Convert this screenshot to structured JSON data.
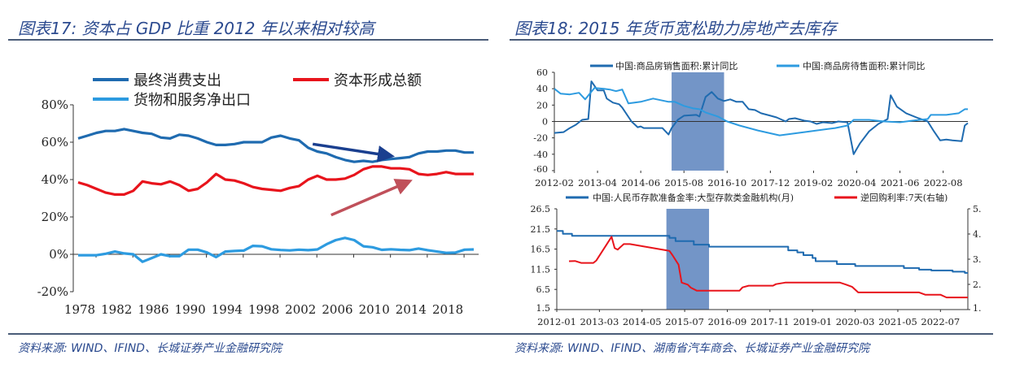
{
  "left_figure": {
    "title": "图表17:  资本占 GDP 比重 2012 年以来相对较高",
    "source": "资料来源:  WIND、IFIND、长城证券产业金融研究院"
  },
  "right_figure": {
    "title": "图表18:  2015 年货币宽松助力房地产去库存",
    "source": "资料来源:  WIND、IFIND、湖南省汽车商会、长城证券产业金融研究院"
  },
  "chart_data": [
    {
      "type": "line",
      "title": "",
      "xlabel": "",
      "ylabel": "",
      "x_start": 1978,
      "xlim": [
        1977.5,
        2021.5
      ],
      "ylim": [
        -20,
        80
      ],
      "yticks": [
        "-20%",
        "0%",
        "20%",
        "40%",
        "60%",
        "80%"
      ],
      "xticks": [
        "1978",
        "1982",
        "1986",
        "1990",
        "1994",
        "1998",
        "2002",
        "2006",
        "2010",
        "2014",
        "2018"
      ],
      "legend": "top",
      "grid": false,
      "series": [
        {
          "name": "最终消费支出",
          "color": "#1f6bb0",
          "values": [
            62,
            63.5,
            65,
            66,
            66,
            67,
            66,
            65,
            64.5,
            62.5,
            62,
            64,
            63.5,
            62,
            60,
            58.5,
            58.5,
            59,
            60,
            60,
            60,
            62.5,
            63.5,
            62,
            61,
            57,
            55,
            54,
            52,
            50.5,
            49.5,
            50,
            49.5,
            50.5,
            51,
            51.5,
            52,
            54,
            55,
            55,
            55.5,
            55.5,
            54.5,
            54.5
          ]
        },
        {
          "name": "资本形成总额",
          "color": "#e8141c",
          "values": [
            38.5,
            37,
            35,
            33,
            32,
            32,
            34,
            39,
            38,
            37.5,
            39,
            37,
            34,
            35,
            38.5,
            43,
            40,
            39.5,
            38,
            36,
            35,
            34.5,
            34,
            35.5,
            36.5,
            40,
            42,
            40,
            40,
            40.5,
            42.5,
            45.5,
            47,
            47,
            46,
            46,
            45.5,
            43,
            42.5,
            43,
            44,
            43,
            43,
            43
          ]
        },
        {
          "name": "货物和服务净出口",
          "color": "#2d9be0",
          "values": [
            -0.5,
            -0.5,
            -0.5,
            0.3,
            1.5,
            0.5,
            0,
            -4,
            -2,
            0,
            -1,
            -1,
            2.5,
            2.5,
            1,
            -1.5,
            1.5,
            1.8,
            2,
            4.5,
            4.3,
            2.7,
            2.3,
            2.1,
            2.5,
            2.2,
            2.6,
            5.4,
            7.6,
            8.8,
            7.6,
            4.3,
            3.8,
            2.4,
            2.7,
            2.4,
            2.2,
            3.1,
            2.2,
            1.5,
            0.8,
            0.9,
            2.5,
            2.6
          ]
        }
      ],
      "annotations": [
        {
          "type": "arrow",
          "color": "#1a3f8f",
          "direction": "down",
          "from": [
            2003.5,
            59
          ],
          "to": [
            2011.5,
            53
          ]
        },
        {
          "type": "arrow",
          "color": "#c0505a",
          "direction": "up",
          "from": [
            2005.5,
            21
          ],
          "to": [
            2013.5,
            38
          ]
        }
      ]
    },
    {
      "type": "line",
      "title": "",
      "xlabel": "",
      "ylabel": "",
      "xlim": [
        "2012-02",
        "2023-04"
      ],
      "ylim": [
        -60,
        60
      ],
      "yticks": [
        "-60",
        "-40",
        "-20",
        "0",
        "20",
        "40",
        "60"
      ],
      "xticks": [
        "2012-02",
        "2013-04",
        "2014-06",
        "2015-08",
        "2016-10",
        "2017-12",
        "2019-02",
        "2020-04",
        "2021-06",
        "2022-08"
      ],
      "shaded_period": [
        "2015-04",
        "2016-09"
      ],
      "shade_color": "#5a82bd",
      "legend": "top",
      "series": [
        {
          "name": "中国:商品房销售面积:累计同比",
          "color": "#1f6bb0",
          "points": [
            [
              "2012-02",
              -14
            ],
            [
              "2012-05",
              -13
            ],
            [
              "2012-07",
              -8
            ],
            [
              "2012-09",
              -4
            ],
            [
              "2012-11",
              2
            ],
            [
              "2013-01",
              3
            ],
            [
              "2013-02",
              49
            ],
            [
              "2013-04",
              38
            ],
            [
              "2013-06",
              38
            ],
            [
              "2013-07",
              28
            ],
            [
              "2013-09",
              23
            ],
            [
              "2013-11",
              21
            ],
            [
              "2013-12",
              17
            ],
            [
              "2014-03",
              0
            ],
            [
              "2014-05",
              -7
            ],
            [
              "2014-06",
              -6
            ],
            [
              "2014-07",
              -8
            ],
            [
              "2014-10",
              -8
            ],
            [
              "2015-01",
              -8
            ],
            [
              "2015-03",
              -16
            ],
            [
              "2015-04",
              -8
            ],
            [
              "2015-06",
              2
            ],
            [
              "2015-08",
              7
            ],
            [
              "2015-12",
              8
            ],
            [
              "2016-01",
              6
            ],
            [
              "2016-03",
              30
            ],
            [
              "2016-05",
              36
            ],
            [
              "2016-07",
              28
            ],
            [
              "2016-09",
              25
            ],
            [
              "2016-11",
              27
            ],
            [
              "2017-01",
              24
            ],
            [
              "2017-03",
              24
            ],
            [
              "2017-05",
              15
            ],
            [
              "2017-07",
              14
            ],
            [
              "2017-09",
              10
            ],
            [
              "2017-12",
              7
            ],
            [
              "2018-02",
              5
            ],
            [
              "2018-05",
              0
            ],
            [
              "2018-06",
              3
            ],
            [
              "2018-08",
              4
            ],
            [
              "2018-11",
              1
            ],
            [
              "2019-01",
              0
            ],
            [
              "2019-03",
              -3
            ],
            [
              "2019-05",
              -1
            ],
            [
              "2019-08",
              -2
            ],
            [
              "2019-10",
              0
            ],
            [
              "2020-01",
              -1
            ],
            [
              "2020-03",
              -40
            ],
            [
              "2020-05",
              -27
            ],
            [
              "2020-08",
              -12
            ],
            [
              "2020-11",
              -3
            ],
            [
              "2021-02",
              3
            ],
            [
              "2021-03",
              32
            ],
            [
              "2021-05",
              18
            ],
            [
              "2021-08",
              10
            ],
            [
              "2021-12",
              4
            ],
            [
              "2022-03",
              0
            ],
            [
              "2022-05",
              -12
            ],
            [
              "2022-07",
              -23
            ],
            [
              "2022-09",
              -22
            ],
            [
              "2022-11",
              -23
            ],
            [
              "2023-02",
              -24
            ],
            [
              "2023-03",
              -5
            ],
            [
              "2023-04",
              -2
            ]
          ]
        },
        {
          "name": "中国:商品房待售面积:累计同比",
          "color": "#2d9be0",
          "points": [
            [
              "2012-02",
              40
            ],
            [
              "2012-04",
              34
            ],
            [
              "2012-07",
              33
            ],
            [
              "2012-10",
              35
            ],
            [
              "2012-12",
              27
            ],
            [
              "2013-03",
              41
            ],
            [
              "2013-06",
              40
            ],
            [
              "2013-08",
              39
            ],
            [
              "2013-10",
              37
            ],
            [
              "2013-12",
              39
            ],
            [
              "2014-02",
              22
            ],
            [
              "2014-06",
              24
            ],
            [
              "2014-10",
              28
            ],
            [
              "2015-03",
              24
            ],
            [
              "2015-05",
              24
            ],
            [
              "2015-08",
              19
            ],
            [
              "2015-11",
              16
            ],
            [
              "2016-01",
              15
            ],
            [
              "2016-03",
              11
            ],
            [
              "2016-07",
              6
            ],
            [
              "2016-10",
              0
            ],
            [
              "2017-02",
              -5
            ],
            [
              "2017-08",
              -11
            ],
            [
              "2018-03",
              -17
            ],
            [
              "2018-11",
              -13
            ],
            [
              "2019-09",
              -8
            ],
            [
              "2020-01",
              -5
            ],
            [
              "2020-03",
              2
            ],
            [
              "2020-08",
              2
            ],
            [
              "2021-01",
              0
            ],
            [
              "2021-06",
              -1
            ],
            [
              "2021-10",
              1
            ],
            [
              "2022-03",
              3
            ],
            [
              "2022-04",
              8
            ],
            [
              "2022-09",
              8
            ],
            [
              "2023-01",
              10
            ],
            [
              "2023-03",
              15
            ],
            [
              "2023-04",
              15
            ]
          ]
        }
      ]
    },
    {
      "type": "line",
      "title": "",
      "xlabel": "",
      "ylabel": "",
      "xlim": [
        "2012-01",
        "2023-04"
      ],
      "ylim": [
        1.5,
        26.5
      ],
      "ylim_right": [
        1,
        5
      ],
      "yticks": [
        "1.5",
        "6.5",
        "11.5",
        "16.5",
        "21.5",
        "26.5"
      ],
      "yticks_right": [
        "1.",
        "2.",
        "3.",
        "4.",
        "5."
      ],
      "xticks": [
        "2012-01",
        "2013-03",
        "2014-05",
        "2015-07",
        "2016-09",
        "2017-11",
        "2019-01",
        "2020-03",
        "2021-05",
        "2022-07"
      ],
      "shaded_period": [
        "2015-01",
        "2016-03"
      ],
      "shade_color": "#5a82bd",
      "legend": "top",
      "series": [
        {
          "name": "中国:人民币存款准备金率:大型存款类金融机构(月)",
          "color": "#1f6bb0",
          "axis": "left",
          "step": true,
          "points": [
            [
              "2012-01",
              21.0
            ],
            [
              "2012-03",
              20.3
            ],
            [
              "2012-06",
              19.8
            ],
            [
              "2015-01",
              19.8
            ],
            [
              "2015-02",
              19.3
            ],
            [
              "2015-04",
              18.5
            ],
            [
              "2015-08",
              18.5
            ],
            [
              "2015-10",
              17.6
            ],
            [
              "2016-03",
              17.1
            ],
            [
              "2018-04",
              17.1
            ],
            [
              "2018-05",
              16.2
            ],
            [
              "2018-08",
              15.7
            ],
            [
              "2018-10",
              15.0
            ],
            [
              "2019-01",
              14.3
            ],
            [
              "2019-02",
              13.5
            ],
            [
              "2019-09",
              12.8
            ],
            [
              "2020-03",
              12.3
            ],
            [
              "2021-06",
              12.3
            ],
            [
              "2021-07",
              11.8
            ],
            [
              "2021-12",
              11.4
            ],
            [
              "2022-04",
              11.2
            ],
            [
              "2022-11",
              10.9
            ],
            [
              "2023-03",
              10.6
            ],
            [
              "2023-04",
              10.6
            ]
          ]
        },
        {
          "name": "逆回购利率:7天(右轴)",
          "color": "#e8141c",
          "axis": "right",
          "points": [
            [
              "2012-05",
              2.92
            ],
            [
              "2012-07",
              2.93
            ],
            [
              "2012-09",
              2.85
            ],
            [
              "2013-01",
              2.85
            ],
            [
              "2013-02",
              2.95
            ],
            [
              "2013-07",
              3.89
            ],
            [
              "2013-08",
              3.44
            ],
            [
              "2013-09",
              3.38
            ],
            [
              "2013-11",
              3.6
            ],
            [
              "2014-01",
              3.6
            ],
            [
              "2015-01",
              3.35
            ],
            [
              "2015-02",
              3.33
            ],
            [
              "2015-03",
              3.16
            ],
            [
              "2015-05",
              2.78
            ],
            [
              "2015-06",
              2.07
            ],
            [
              "2015-08",
              1.99
            ],
            [
              "2015-09",
              1.87
            ],
            [
              "2015-11",
              1.75
            ],
            [
              "2017-01",
              1.75
            ],
            [
              "2017-02",
              1.88
            ],
            [
              "2017-04",
              1.95
            ],
            [
              "2017-12",
              1.95
            ],
            [
              "2018-01",
              2.01
            ],
            [
              "2018-04",
              2.07
            ],
            [
              "2019-10",
              2.07
            ],
            [
              "2019-12",
              1.99
            ],
            [
              "2020-02",
              1.9
            ],
            [
              "2020-04",
              1.68
            ],
            [
              "2021-12",
              1.68
            ],
            [
              "2022-02",
              1.59
            ],
            [
              "2022-07",
              1.59
            ],
            [
              "2022-09",
              1.48
            ],
            [
              "2023-04",
              1.48
            ]
          ]
        }
      ]
    }
  ]
}
